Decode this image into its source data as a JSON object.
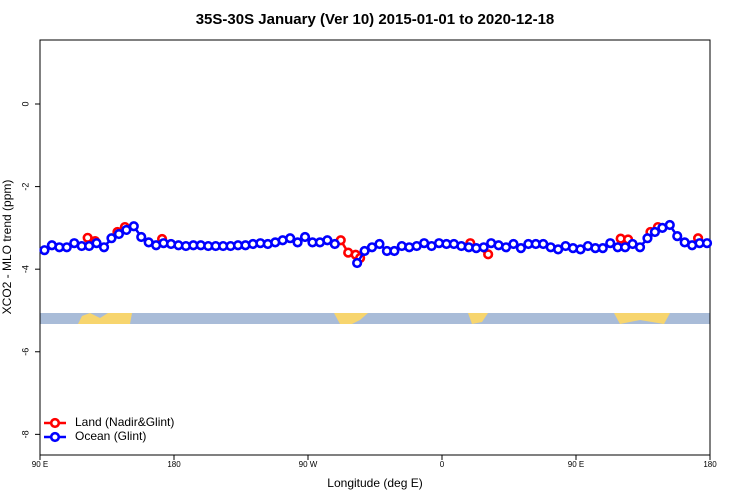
{
  "chart_data": {
    "type": "line",
    "title": "35S-30S January (Ver 10)   2015-01-01 to 2020-12-18",
    "x_label": "Longitude (deg E)",
    "y_label": "XCO2 - MLO trend (ppm)",
    "xlim": [
      90,
      540
    ],
    "xticks": [
      {
        "value": 90,
        "label": "90 E"
      },
      {
        "value": 180,
        "label": "180"
      },
      {
        "value": 270,
        "label": "90 W"
      },
      {
        "value": 360,
        "label": "0"
      },
      {
        "value": 450,
        "label": "90 E"
      },
      {
        "value": 540,
        "label": "180"
      }
    ],
    "ylim": [
      -8.5,
      1.55
    ],
    "yticks": [
      0,
      -2,
      -4,
      -6,
      -8
    ],
    "legend": "bottom-left",
    "series": [
      {
        "name": "Land (Nadir&Glint)",
        "color": "#ff0000",
        "x": [
          122,
          127,
          142,
          147,
          172,
          292,
          297,
          302,
          305,
          379,
          391,
          480,
          485,
          500,
          505,
          532
        ],
        "values": [
          -3.24,
          -3.32,
          -3.1,
          -2.98,
          -3.27,
          -3.3,
          -3.6,
          -3.65,
          -3.73,
          -3.37,
          -3.64,
          -3.26,
          -3.28,
          -3.1,
          -2.98,
          -3.25
        ]
      },
      {
        "name": "Ocean (Glint)",
        "color": "#0000ff",
        "x": [
          93,
          98,
          103,
          108,
          113,
          118,
          123,
          128,
          133,
          138,
          143,
          148,
          153,
          158,
          163,
          168,
          173,
          178,
          183,
          188,
          193,
          198,
          203,
          208,
          213,
          218,
          223,
          228,
          233,
          238,
          243,
          248,
          253,
          258,
          263,
          268,
          273,
          278,
          283,
          288,
          293,
          298,
          303,
          308,
          313,
          318,
          323,
          328,
          333,
          338,
          343,
          348,
          353,
          358,
          363,
          368,
          373,
          378,
          383,
          388,
          393,
          398,
          403,
          408,
          413,
          418,
          423,
          428,
          433,
          438,
          443,
          448,
          453,
          458,
          463,
          468,
          473,
          478,
          483,
          488,
          493,
          498,
          503,
          508,
          513,
          518,
          523,
          528,
          533,
          538
        ],
        "values": [
          -3.54,
          -3.42,
          -3.47,
          -3.47,
          -3.37,
          -3.44,
          -3.44,
          -3.37,
          -3.47,
          -3.25,
          -3.15,
          -3.05,
          -2.96,
          -3.22,
          -3.35,
          -3.42,
          -3.37,
          -3.39,
          -3.42,
          -3.44,
          -3.42,
          -3.42,
          -3.44,
          -3.44,
          -3.44,
          -3.44,
          -3.42,
          -3.42,
          -3.39,
          -3.37,
          -3.39,
          -3.35,
          -3.3,
          -3.25,
          -3.35,
          -3.22,
          -3.35,
          -3.35,
          -3.3,
          -3.39,
          null,
          null,
          -3.85,
          -3.56,
          -3.47,
          -3.39,
          -3.56,
          -3.56,
          -3.44,
          -3.47,
          -3.44,
          -3.37,
          -3.44,
          -3.37,
          -3.39,
          -3.39,
          -3.44,
          -3.47,
          -3.49,
          -3.47,
          -3.37,
          -3.42,
          -3.47,
          -3.39,
          -3.49,
          -3.39,
          -3.39,
          -3.39,
          -3.47,
          -3.52,
          -3.44,
          -3.49,
          -3.52,
          -3.44,
          -3.49,
          -3.49,
          -3.37,
          -3.47,
          -3.47,
          -3.39,
          -3.47,
          -3.25,
          -3.1,
          -3.0,
          -2.93,
          -3.2,
          -3.35,
          -3.42,
          -3.37,
          -3.37
        ]
      }
    ]
  }
}
